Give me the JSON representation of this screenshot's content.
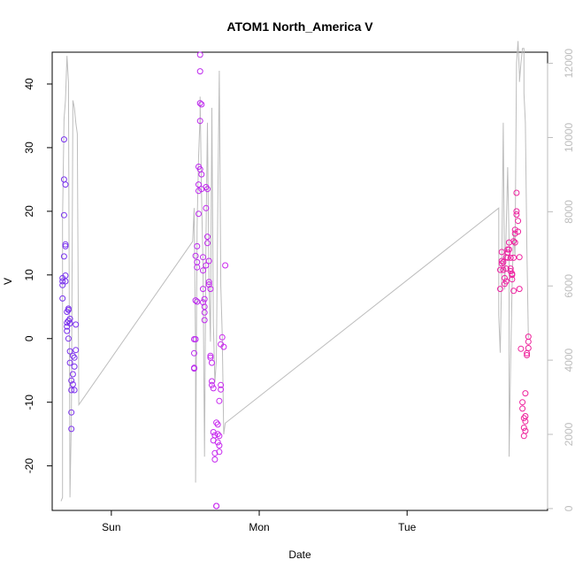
{
  "chart_data": {
    "type": "scatter",
    "title": "ATOM1 North_America V",
    "xlabel": "Date",
    "ylabel": "V",
    "xlim": [
      -0.4,
      2.95
    ],
    "ylim": [
      -27,
      45
    ],
    "y2lim": [
      -50,
      12300
    ],
    "x_ticks": [
      {
        "value": 0,
        "label": "Sun"
      },
      {
        "value": 1,
        "label": "Mon"
      },
      {
        "value": 2,
        "label": "Tue"
      }
    ],
    "y_ticks": [
      -20,
      -10,
      0,
      10,
      20,
      30,
      40
    ],
    "y2_ticks": [
      0,
      2000,
      4000,
      6000,
      8000,
      10000,
      12000
    ],
    "line_color": "#bdbdbd",
    "point_color_start": "#7733ee",
    "point_color_mid": "#ee22ee",
    "point_color_end": "#ee2299",
    "series": [
      {
        "kind": "points",
        "axis": "left",
        "points": [
          [
            -0.33,
            9.0
          ],
          [
            -0.33,
            8.4
          ],
          [
            -0.33,
            6.3
          ],
          [
            -0.33,
            9.5
          ],
          [
            -0.32,
            12.9
          ],
          [
            -0.32,
            19.4
          ],
          [
            -0.32,
            25.0
          ],
          [
            -0.32,
            31.3
          ],
          [
            -0.31,
            24.2
          ],
          [
            -0.31,
            14.8
          ],
          [
            -0.31,
            14.5
          ],
          [
            -0.31,
            9.9
          ],
          [
            -0.31,
            9.0
          ],
          [
            -0.3,
            4.2
          ],
          [
            -0.3,
            2.5
          ],
          [
            -0.3,
            1.9
          ],
          [
            -0.3,
            1.2
          ],
          [
            -0.29,
            4.7
          ],
          [
            -0.29,
            4.5
          ],
          [
            -0.29,
            0.0
          ],
          [
            -0.29,
            2.8
          ],
          [
            -0.28,
            3.1
          ],
          [
            -0.28,
            2.4
          ],
          [
            -0.28,
            -2.0
          ],
          [
            -0.28,
            -3.8
          ],
          [
            -0.27,
            -8.1
          ],
          [
            -0.27,
            -11.6
          ],
          [
            -0.27,
            -14.2
          ],
          [
            -0.27,
            -6.6
          ],
          [
            -0.26,
            -7.2
          ],
          [
            -0.26,
            -5.6
          ],
          [
            -0.26,
            -2.7
          ],
          [
            -0.25,
            -4.4
          ],
          [
            -0.25,
            -8.1
          ],
          [
            -0.25,
            -3.0
          ],
          [
            -0.24,
            -1.8
          ],
          [
            -0.24,
            2.2
          ],
          [
            0.56,
            -0.1
          ],
          [
            0.56,
            -2.3
          ],
          [
            0.56,
            -4.7
          ],
          [
            0.56,
            -4.6
          ],
          [
            0.57,
            -0.1
          ],
          [
            0.57,
            6.0
          ],
          [
            0.57,
            13.0
          ],
          [
            0.58,
            14.5
          ],
          [
            0.58,
            12.0
          ],
          [
            0.58,
            11.2
          ],
          [
            0.58,
            5.8
          ],
          [
            0.59,
            19.6
          ],
          [
            0.59,
            23.2
          ],
          [
            0.59,
            24.2
          ],
          [
            0.59,
            27.0
          ],
          [
            0.6,
            26.6
          ],
          [
            0.6,
            34.2
          ],
          [
            0.6,
            37.0
          ],
          [
            0.6,
            42.0
          ],
          [
            0.6,
            44.6
          ],
          [
            0.61,
            36.8
          ],
          [
            0.61,
            25.8
          ],
          [
            0.61,
            23.5
          ],
          [
            0.62,
            12.8
          ],
          [
            0.62,
            10.7
          ],
          [
            0.62,
            7.8
          ],
          [
            0.62,
            5.7
          ],
          [
            0.63,
            5.0
          ],
          [
            0.63,
            4.1
          ],
          [
            0.63,
            2.9
          ],
          [
            0.63,
            6.2
          ],
          [
            0.64,
            11.5
          ],
          [
            0.64,
            20.5
          ],
          [
            0.64,
            23.8
          ],
          [
            0.65,
            23.5
          ],
          [
            0.65,
            16.0
          ],
          [
            0.65,
            15.0
          ],
          [
            0.66,
            12.2
          ],
          [
            0.66,
            8.5
          ],
          [
            0.66,
            8.9
          ],
          [
            0.67,
            7.8
          ],
          [
            0.67,
            -2.7
          ],
          [
            0.67,
            -3.0
          ],
          [
            0.68,
            -3.8
          ],
          [
            0.68,
            -6.7
          ],
          [
            0.68,
            -7.3
          ],
          [
            0.69,
            -7.8
          ],
          [
            0.69,
            -14.7
          ],
          [
            0.69,
            -16.0
          ],
          [
            0.7,
            -15.2
          ],
          [
            0.7,
            -18.0
          ],
          [
            0.7,
            -19.0
          ],
          [
            0.71,
            -13.2
          ],
          [
            0.71,
            -26.3
          ],
          [
            0.71,
            -26.3
          ],
          [
            0.72,
            -13.5
          ],
          [
            0.72,
            -15.0
          ],
          [
            0.72,
            -16.3
          ],
          [
            0.73,
            -16.8
          ],
          [
            0.73,
            -17.8
          ],
          [
            0.73,
            -15.3
          ],
          [
            0.73,
            -9.8
          ],
          [
            0.74,
            -8.0
          ],
          [
            0.74,
            -7.3
          ],
          [
            0.74,
            -0.9
          ],
          [
            0.75,
            0.2
          ],
          [
            0.76,
            -1.3
          ],
          [
            0.77,
            11.5
          ],
          [
            2.63,
            7.8
          ],
          [
            2.63,
            10.8
          ],
          [
            2.64,
            12.2
          ],
          [
            2.64,
            11.8
          ],
          [
            2.64,
            13.6
          ],
          [
            2.65,
            12.0
          ],
          [
            2.65,
            10.8
          ],
          [
            2.66,
            9.5
          ],
          [
            2.66,
            8.6
          ],
          [
            2.67,
            9.0
          ],
          [
            2.67,
            11.0
          ],
          [
            2.67,
            12.8
          ],
          [
            2.68,
            12.7
          ],
          [
            2.68,
            13.5
          ],
          [
            2.68,
            14.0
          ],
          [
            2.69,
            15.1
          ],
          [
            2.69,
            14.0
          ],
          [
            2.7,
            12.7
          ],
          [
            2.7,
            11.0
          ],
          [
            2.7,
            10.6
          ],
          [
            2.71,
            10.2
          ],
          [
            2.71,
            10.0
          ],
          [
            2.71,
            9.3
          ],
          [
            2.72,
            7.5
          ],
          [
            2.72,
            12.7
          ],
          [
            2.72,
            15.3
          ],
          [
            2.73,
            15.1
          ],
          [
            2.73,
            16.5
          ],
          [
            2.73,
            17.1
          ],
          [
            2.74,
            20.0
          ],
          [
            2.74,
            19.5
          ],
          [
            2.74,
            22.9
          ],
          [
            2.75,
            18.5
          ],
          [
            2.75,
            16.8
          ],
          [
            2.76,
            12.8
          ],
          [
            2.76,
            7.8
          ],
          [
            2.77,
            -1.6
          ],
          [
            2.78,
            -10.0
          ],
          [
            2.78,
            -11.0
          ],
          [
            2.79,
            -12.5
          ],
          [
            2.79,
            -14.0
          ],
          [
            2.79,
            -15.3
          ],
          [
            2.8,
            -14.5
          ],
          [
            2.8,
            -13.0
          ],
          [
            2.8,
            -12.2
          ],
          [
            2.8,
            -8.6
          ],
          [
            2.81,
            -2.6
          ],
          [
            2.81,
            -2.3
          ],
          [
            2.82,
            -1.5
          ],
          [
            2.82,
            -0.5
          ],
          [
            2.82,
            0.3
          ]
        ]
      },
      {
        "kind": "line",
        "axis": "right",
        "points": [
          [
            -0.34,
            200
          ],
          [
            -0.33,
            300
          ],
          [
            -0.33,
            7800
          ],
          [
            -0.32,
            10500
          ],
          [
            -0.31,
            11000
          ],
          [
            -0.3,
            12200
          ],
          [
            -0.29,
            11500
          ],
          [
            -0.28,
            300
          ],
          [
            -0.27,
            2500
          ],
          [
            -0.26,
            11000
          ],
          [
            -0.25,
            10800
          ],
          [
            -0.24,
            10400
          ],
          [
            -0.23,
            10100
          ],
          [
            -0.22,
            2800
          ],
          [
            0.55,
            7200
          ],
          [
            0.56,
            8100
          ],
          [
            0.57,
            4200
          ],
          [
            0.57,
            700
          ],
          [
            0.58,
            7600
          ],
          [
            0.59,
            9500
          ],
          [
            0.6,
            10600
          ],
          [
            0.6,
            11100
          ],
          [
            0.61,
            8500
          ],
          [
            0.62,
            6500
          ],
          [
            0.63,
            1400
          ],
          [
            0.64,
            7400
          ],
          [
            0.65,
            10400
          ],
          [
            0.66,
            6100
          ],
          [
            0.67,
            4500
          ],
          [
            0.68,
            10800
          ],
          [
            0.69,
            5000
          ],
          [
            0.7,
            3400
          ],
          [
            0.71,
            4000
          ],
          [
            0.72,
            8200
          ],
          [
            0.73,
            11800
          ],
          [
            0.74,
            6000
          ],
          [
            0.75,
            4700
          ],
          [
            0.76,
            2000
          ],
          [
            0.77,
            2300
          ],
          [
            2.62,
            8100
          ],
          [
            2.62,
            5200
          ],
          [
            2.63,
            4200
          ],
          [
            2.64,
            6500
          ],
          [
            2.65,
            10400
          ],
          [
            2.66,
            5900
          ],
          [
            2.67,
            7500
          ],
          [
            2.68,
            9200
          ],
          [
            2.69,
            7200
          ],
          [
            2.69,
            1400
          ],
          [
            2.7,
            3900
          ],
          [
            2.71,
            6000
          ],
          [
            2.72,
            7500
          ],
          [
            2.73,
            6800
          ],
          [
            2.74,
            12000
          ],
          [
            2.75,
            12600
          ],
          [
            2.76,
            11700
          ],
          [
            2.76,
            11500
          ],
          [
            2.77,
            12000
          ],
          [
            2.78,
            12400
          ],
          [
            2.79,
            12400
          ],
          [
            2.79,
            11200
          ],
          [
            2.8,
            10400
          ],
          [
            2.81,
            7000
          ],
          [
            2.82,
            4600
          ]
        ]
      }
    ]
  }
}
